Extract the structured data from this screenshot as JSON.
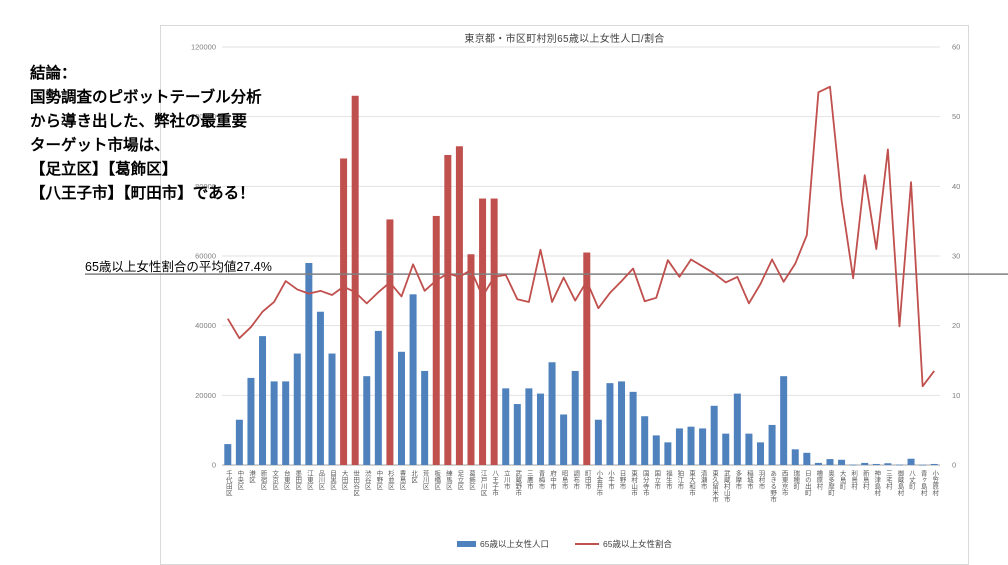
{
  "annotation": {
    "lines": [
      "結論：",
      "国勢調査のピボットテーブル分析",
      "から導き出した、弊社の最重要",
      "ターゲット市場は、",
      "【足立区】【葛飾区】",
      "【八王子市】【町田市】である！"
    ]
  },
  "average_label": "65歳以上女性割合の平均値27.4%",
  "legend": [
    {
      "label": "65歳以上女性人口",
      "swatch": "bar",
      "color": "#4f81bd"
    },
    {
      "label": "65歳以上女性割合",
      "swatch": "line",
      "color": "#c0504d"
    }
  ],
  "chart_data": {
    "type": "bar+line combo",
    "title": "東京都・市区町村別65歳以上女性人口/割合",
    "categories": [
      "千代田区",
      "中央区",
      "港区",
      "新宿区",
      "文京区",
      "台東区",
      "墨田区",
      "江東区",
      "品川区",
      "目黒区",
      "大田区",
      "世田谷区",
      "渋谷区",
      "中野区",
      "杉並区",
      "豊島区",
      "北区",
      "荒川区",
      "板橋区",
      "練馬区",
      "足立区",
      "葛飾区",
      "江戸川区",
      "八王子市",
      "立川市",
      "武蔵野市",
      "三鷹市",
      "青梅市",
      "府中市",
      "昭島市",
      "調布市",
      "町田市",
      "小金井市",
      "小平市",
      "日野市",
      "東村山市",
      "国分寺市",
      "国立市",
      "福生市",
      "狛江市",
      "東大和市",
      "清瀬市",
      "東久留米市",
      "武蔵村山市",
      "多摩市",
      "稲城市",
      "羽村市",
      "あきる野市",
      "西東京市",
      "瑞穂町",
      "日の出町",
      "檜原村",
      "奥多摩町",
      "大島町",
      "利島村",
      "新島村",
      "神津島村",
      "三宅村",
      "御蔵島村",
      "八丈町",
      "青ヶ島村",
      "小笠原村"
    ],
    "series": [
      {
        "name": "65歳以上女性人口",
        "type": "bar",
        "axis": "left",
        "color": "#4f81bd",
        "highlight_color": "#c0504d",
        "values": [
          6000,
          13000,
          25000,
          37000,
          24000,
          24000,
          32000,
          58000,
          44000,
          32000,
          88000,
          106000,
          25500,
          38500,
          70500,
          32500,
          49000,
          27000,
          71500,
          89000,
          91500,
          60500,
          76500,
          76500,
          22000,
          17500,
          22000,
          20500,
          29500,
          14500,
          27000,
          61000,
          13000,
          23500,
          24000,
          21000,
          14000,
          8500,
          6500,
          10500,
          11000,
          10500,
          17000,
          9000,
          20500,
          9000,
          6500,
          11500,
          25500,
          4500,
          3500,
          600,
          1700,
          1500,
          100,
          600,
          300,
          500,
          100,
          1800,
          50,
          300
        ]
      },
      {
        "name": "65歳以上女性割合",
        "type": "line",
        "axis": "right",
        "color": "#c0504d",
        "values": [
          21.0,
          18.2,
          19.8,
          22.0,
          23.4,
          26.4,
          25.2,
          24.6,
          25.0,
          24.4,
          25.6,
          24.8,
          23.2,
          24.8,
          26.2,
          24.2,
          28.8,
          25.0,
          26.5,
          27.5,
          27.0,
          28.0,
          24.2,
          27.0,
          27.3,
          23.8,
          23.4,
          30.9,
          23.4,
          26.9,
          23.6,
          26.4,
          22.5,
          24.7,
          26.4,
          28.2,
          23.5,
          24.0,
          29.4,
          27.0,
          29.5,
          28.5,
          27.5,
          26.2,
          27.0,
          23.2,
          26.0,
          29.5,
          26.3,
          28.9,
          33.0,
          53.5,
          54.3,
          38.0,
          26.8,
          41.6,
          31.0,
          45.3,
          19.9,
          40.6,
          11.3,
          13.5
        ]
      }
    ],
    "highlighted_categories": [
      "大田区",
      "世田谷区",
      "杉並区",
      "板橋区",
      "練馬区",
      "足立区",
      "葛飾区",
      "江戸川区",
      "八王子市",
      "町田市"
    ],
    "left_axis": {
      "min": 0,
      "max": 120000,
      "ticks": [
        0,
        20000,
        40000,
        60000,
        80000,
        100000,
        120000
      ]
    },
    "right_axis": {
      "min": 0,
      "max": 60,
      "ticks": [
        0,
        10,
        20,
        30,
        40,
        50,
        60
      ]
    },
    "average_line": {
      "value": 27.4,
      "axis": "right",
      "color": "#7f7f7f"
    },
    "grid": true,
    "legend_position": "bottom"
  }
}
